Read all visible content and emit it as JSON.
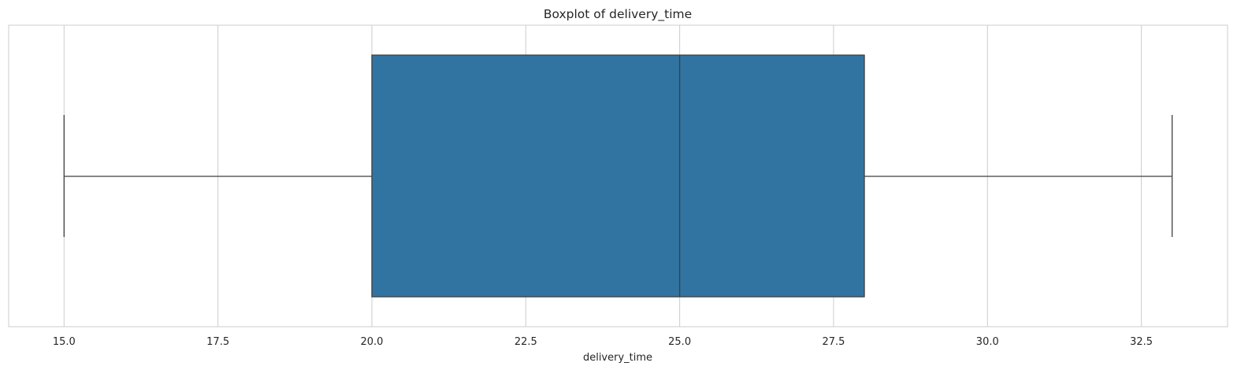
{
  "chart_data": {
    "type": "boxplot",
    "title": "Boxplot of delivery_time",
    "xlabel": "delivery_time",
    "ylabel": "",
    "xlim": [
      14.1,
      33.9
    ],
    "x_ticks": [
      15.0,
      17.5,
      20.0,
      22.5,
      25.0,
      27.5,
      30.0,
      32.5
    ],
    "x_tick_labels": [
      "15.0",
      "17.5",
      "20.0",
      "22.5",
      "25.0",
      "27.5",
      "30.0",
      "32.5"
    ],
    "grid": true,
    "orientation": "horizontal",
    "box": {
      "whisker_low": 15,
      "q1": 20,
      "median": 25,
      "q3": 28,
      "whisker_high": 33
    },
    "colors": {
      "box_fill": "#3274a1",
      "line": "#3f3f3f",
      "grid": "#cccccc"
    }
  }
}
